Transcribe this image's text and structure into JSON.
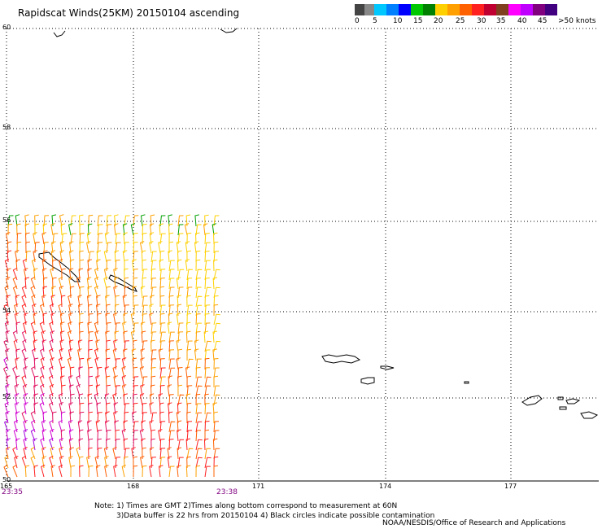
{
  "title": "Rapidscat Winds(25KM) 20150104 ascending",
  "scale": {
    "colors": [
      "#444444",
      "#888888",
      "#00c8ff",
      "#0080ff",
      "#0000ff",
      "#00c800",
      "#008000",
      "#ffd000",
      "#ffa000",
      "#ff6000",
      "#ff2020",
      "#c00030",
      "#804020",
      "#ff00ff",
      "#c000ff",
      "#800080",
      "#400080"
    ],
    "labels": [
      "0",
      "5",
      "10",
      "15",
      "20",
      "25",
      "30",
      "35",
      "40",
      "45",
      ">50 knots"
    ]
  },
  "map": {
    "lat_labels": [
      "60",
      "58",
      "56",
      "54",
      "52",
      "50"
    ],
    "lon_labels": [
      "165",
      "168",
      "171",
      "174",
      "177"
    ],
    "times": [
      "23:35",
      "23:38"
    ]
  },
  "notes": [
    "Note: 1) Times are GMT 2)Times along bottom correspond to measurement at 60N",
    "3)Data buffer is 22 hrs from 20150104 4) Black circles indicate possible contamination"
  ],
  "credit": "NOAA/NESDIS/Office of Research and Applications"
}
